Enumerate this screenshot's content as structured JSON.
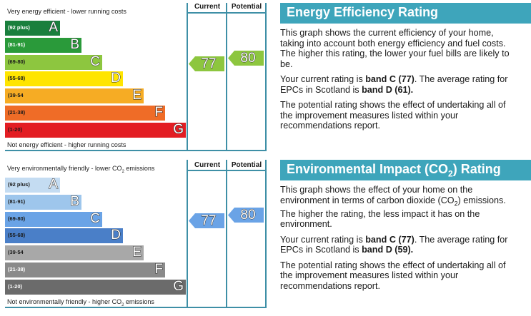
{
  "chart_data": [
    {
      "type": "bar",
      "title": "Energy Efficiency Rating",
      "top_caption": "Very energy efficient - lower running costs",
      "bottom_caption": "Not energy efficient - higher running costs",
      "column_headers": {
        "current": "Current",
        "potential": "Potential"
      },
      "categories": [
        "A",
        "B",
        "C",
        "D",
        "E",
        "F",
        "G"
      ],
      "ranges": [
        "(92 plus)",
        "(81-91)",
        "(69-80)",
        "(55-68)",
        "(39-54",
        "(21-38)",
        "(1-20)"
      ],
      "colors": [
        "#1a7f3d",
        "#2a9a3a",
        "#8dc63f",
        "#ffe500",
        "#f6ac24",
        "#ef6c27",
        "#e31d23"
      ],
      "range_text_colors": [
        "#ffffff",
        "#ffffff",
        "#1a1a1a",
        "#1a1a1a",
        "#1a1a1a",
        "#1a1a1a",
        "#1a1a1a"
      ],
      "current": {
        "value": 77,
        "band": "C",
        "color": "#8dc63f"
      },
      "potential": {
        "value": 80,
        "band": "C",
        "color": "#8dc63f"
      }
    },
    {
      "type": "bar",
      "title": "Environmental Impact (CO2) Rating",
      "top_caption": "Very environmentally friendly - lower CO",
      "top_caption_suffix": " emissions",
      "bottom_caption": "Not environmentally friendly - higher CO",
      "bottom_caption_suffix": " emissions",
      "sub": "2",
      "column_headers": {
        "current": "Current",
        "potential": "Potential"
      },
      "categories": [
        "A",
        "B",
        "C",
        "D",
        "E",
        "F",
        "G"
      ],
      "ranges": [
        "(92 plus)",
        "(81-91)",
        "(69-80)",
        "(55-68)",
        "(39-54",
        "(21-38)",
        "(1-20)"
      ],
      "colors": [
        "#c4dcf2",
        "#9ec6ec",
        "#6aa3e6",
        "#4a7fc8",
        "#a8a8a8",
        "#8a8a8a",
        "#6b6b6b"
      ],
      "range_text_colors": [
        "#1a1a1a",
        "#1a1a1a",
        "#1a1a1a",
        "#1a1a1a",
        "#1a1a1a",
        "#ffffff",
        "#ffffff"
      ],
      "current": {
        "value": 77,
        "band": "C",
        "color": "#6aa3e6"
      },
      "potential": {
        "value": 80,
        "band": "C",
        "color": "#6aa3e6"
      }
    }
  ],
  "panels": {
    "ee": {
      "title": "Energy Efficiency Rating",
      "p1": "This graph shows the current efficiency of your home, taking into account both energy efficiency and fuel costs. The higher this rating, the lower your fuel bills are likely to be.",
      "p2_pre": "Your current rating is ",
      "p2_b1": "band C (77)",
      "p2_mid": ". The average rating for EPCs in Scotland is ",
      "p2_b2": "band D (61).",
      "p3": "The potential rating shows the effect of undertaking all of the improvement measures listed within your recommendations report."
    },
    "ei": {
      "title_pre": "Environmental Impact (CO",
      "title_sub": "2",
      "title_post": ") Rating",
      "p1_pre": "This graph shows the effect of your home on the environment in terms of carbon dioxide (CO",
      "p1_sub": "2",
      "p1_post": ") emissions. The higher the rating, the less impact it has on the environment.",
      "p2_pre": "Your current rating is ",
      "p2_b1": "band C (77)",
      "p2_mid": ". The average rating for EPCs in Scotland is ",
      "p2_b2": "band D (59).",
      "p3": "The potential rating shows the effect of undertaking all of the improvement measures listed within your recommendations report."
    }
  }
}
